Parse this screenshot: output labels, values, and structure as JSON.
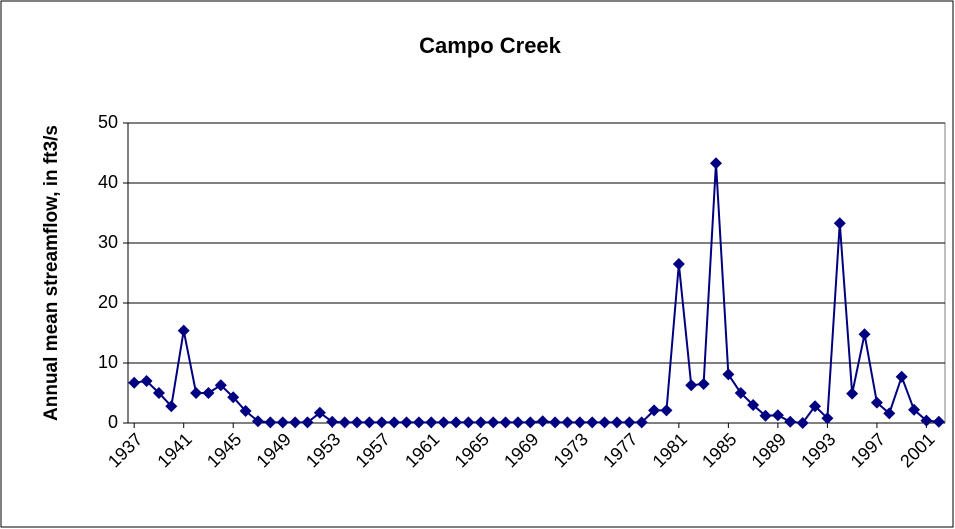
{
  "chart_data": {
    "type": "line",
    "title": "Campo Creek",
    "y_label": "Annual mean streamflow, in ft3/s",
    "x": [
      1937,
      1938,
      1939,
      1940,
      1941,
      1942,
      1943,
      1944,
      1945,
      1946,
      1947,
      1948,
      1949,
      1950,
      1951,
      1952,
      1953,
      1954,
      1955,
      1956,
      1957,
      1958,
      1959,
      1960,
      1961,
      1962,
      1963,
      1964,
      1965,
      1966,
      1967,
      1968,
      1969,
      1970,
      1971,
      1972,
      1973,
      1974,
      1975,
      1976,
      1977,
      1978,
      1979,
      1980,
      1981,
      1982,
      1983,
      1984,
      1985,
      1986,
      1987,
      1988,
      1989,
      1990,
      1991,
      1992,
      1993,
      1994,
      1995,
      1996,
      1997,
      1998,
      1999,
      2000,
      2001,
      2002
    ],
    "series": [
      {
        "color": "#000080",
        "values": [
          6.7,
          7.0,
          5.0,
          2.8,
          15.4,
          5.0,
          5.0,
          6.3,
          4.3,
          2.0,
          0.3,
          0.1,
          0.1,
          0.1,
          0.1,
          1.7,
          0.2,
          0.1,
          0.1,
          0.1,
          0.1,
          0.1,
          0.1,
          0.1,
          0.1,
          0.1,
          0.1,
          0.1,
          0.1,
          0.1,
          0.1,
          0.1,
          0.1,
          0.3,
          0.1,
          0.1,
          0.1,
          0.1,
          0.1,
          0.1,
          0.1,
          0.1,
          2.1,
          2.1,
          26.5,
          6.3,
          6.5,
          43.3,
          8.1,
          5.0,
          3.0,
          1.2,
          1.3,
          0.2,
          0.0,
          2.8,
          0.8,
          33.3,
          4.9,
          14.8,
          3.4,
          1.6,
          7.7,
          2.2,
          0.4,
          0.2
        ]
      }
    ],
    "xlim": [
      1936.5,
      2002.5
    ],
    "xticks": [
      1937,
      1941,
      1945,
      1949,
      1953,
      1957,
      1961,
      1965,
      1969,
      1973,
      1977,
      1981,
      1985,
      1989,
      1993,
      1997,
      2001
    ],
    "ylim": [
      0,
      50
    ],
    "yticks": [
      0,
      10,
      20,
      30,
      40,
      50
    ],
    "grid": true
  }
}
